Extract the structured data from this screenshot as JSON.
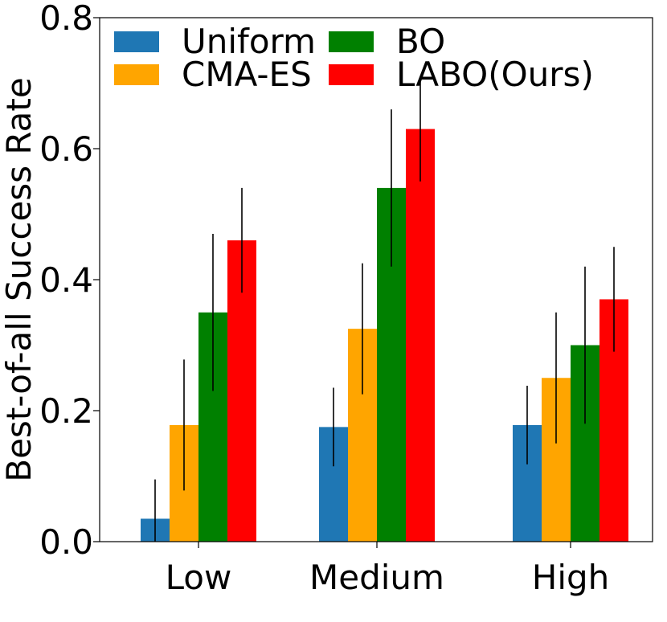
{
  "chart_data": {
    "type": "bar",
    "title": "",
    "xlabel": "",
    "ylabel": "Best-of-all Success Rate",
    "ylim": [
      0,
      0.8
    ],
    "yticks": [
      0.0,
      0.2,
      0.4,
      0.6,
      0.8
    ],
    "ytick_labels": [
      "0.0",
      "0.2",
      "0.4",
      "0.6",
      "0.8"
    ],
    "grid": false,
    "legend_position": "top-left",
    "categories": [
      "Low",
      "Medium",
      "High"
    ],
    "series": [
      {
        "name": "Uniform",
        "color": "#1f77b4",
        "values": [
          0.035,
          0.175,
          0.178
        ],
        "err_low": [
          0.0,
          0.115,
          0.118
        ],
        "err_high": [
          0.095,
          0.235,
          0.238
        ]
      },
      {
        "name": "CMA-ES",
        "color": "#ffa500",
        "values": [
          0.178,
          0.325,
          0.25
        ],
        "err_low": [
          0.078,
          0.225,
          0.15
        ],
        "err_high": [
          0.278,
          0.425,
          0.35
        ]
      },
      {
        "name": "BO",
        "color": "#008000",
        "values": [
          0.35,
          0.54,
          0.3
        ],
        "err_low": [
          0.23,
          0.42,
          0.18
        ],
        "err_high": [
          0.47,
          0.66,
          0.42
        ]
      },
      {
        "name": "LABO(Ours)",
        "color": "#ff0000",
        "values": [
          0.46,
          0.63,
          0.37
        ],
        "err_low": [
          0.38,
          0.55,
          0.29
        ],
        "err_high": [
          0.54,
          0.71,
          0.45
        ]
      }
    ]
  }
}
